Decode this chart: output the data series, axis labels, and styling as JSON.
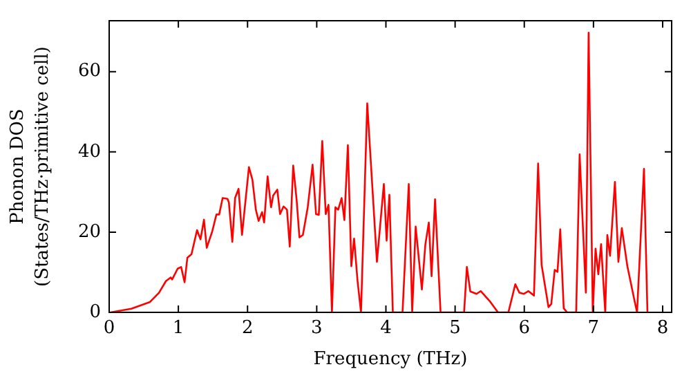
{
  "chart_data": {
    "type": "line",
    "xlabel": "Frequency (THz)",
    "ylabel": "Phonon DOS\n(States/THz·primitive cell)",
    "xlim": [
      0,
      8.13
    ],
    "ylim": [
      0,
      72.7
    ],
    "xticks": [
      0,
      1,
      2,
      3,
      4,
      5,
      6,
      7,
      8
    ],
    "yticks": [
      0,
      20,
      40,
      60
    ],
    "grid": false,
    "legend": false,
    "marker": "none",
    "line_style": "solid",
    "series": [
      {
        "color": "#ff0000",
        "x": [
          0.02,
          0.32,
          0.59,
          0.72,
          0.82,
          0.89,
          0.91,
          0.99,
          1.04,
          1.09,
          1.13,
          1.19,
          1.27,
          1.32,
          1.37,
          1.41,
          1.49,
          1.55,
          1.59,
          1.64,
          1.71,
          1.73,
          1.78,
          1.82,
          1.87,
          1.92,
          2.02,
          2.07,
          2.12,
          2.16,
          2.21,
          2.24,
          2.29,
          2.34,
          2.37,
          2.43,
          2.47,
          2.52,
          2.57,
          2.61,
          2.66,
          2.71,
          2.75,
          2.8,
          2.87,
          2.94,
          2.99,
          3.03,
          3.08,
          3.13,
          3.17,
          3.22,
          3.27,
          3.31,
          3.36,
          3.4,
          3.45,
          3.5,
          3.54,
          3.59,
          3.64,
          3.73,
          3.87,
          3.97,
          4.01,
          4.05,
          4.1,
          4.24,
          4.33,
          4.38,
          4.43,
          4.52,
          4.57,
          4.62,
          4.66,
          4.71,
          4.79,
          5.13,
          5.17,
          5.22,
          5.31,
          5.37,
          5.51,
          5.62,
          5.77,
          5.87,
          5.93,
          5.99,
          6.06,
          6.14,
          6.2,
          6.25,
          6.35,
          6.39,
          6.44,
          6.48,
          6.52,
          6.57,
          6.62,
          6.75,
          6.8,
          6.89,
          6.93,
          6.99,
          7.03,
          7.07,
          7.11,
          7.17,
          7.2,
          7.24,
          7.31,
          7.36,
          7.41,
          7.49,
          7.59,
          7.63,
          7.73,
          7.78
        ],
        "values": [
          0,
          0.9,
          2.6,
          4.9,
          7.8,
          8.7,
          8.2,
          10.9,
          11.3,
          7.5,
          13.6,
          14.5,
          20.5,
          18.2,
          23.1,
          16.1,
          20.2,
          24.4,
          24.4,
          28.5,
          28.3,
          27.4,
          17.6,
          28.5,
          30.8,
          19.3,
          36.2,
          33.1,
          25.6,
          22.8,
          25,
          22.4,
          33.9,
          26.2,
          29.1,
          30.6,
          24.5,
          26.4,
          25.6,
          16.4,
          36.6,
          27.9,
          18.7,
          19.3,
          26.2,
          36.8,
          24.5,
          24.3,
          42.7,
          24.5,
          26.8,
          0,
          26.2,
          25.6,
          28.5,
          23,
          41.7,
          11.5,
          18.4,
          7.8,
          0,
          52.1,
          12.6,
          32,
          17.9,
          29.3,
          0,
          0,
          32,
          0,
          21.4,
          5.7,
          16.9,
          22.4,
          9,
          28.2,
          0,
          0,
          11.3,
          5.2,
          4.6,
          5.3,
          2.6,
          0,
          0,
          7,
          4.9,
          4.6,
          5.3,
          4.2,
          37.1,
          11.9,
          1.3,
          2.1,
          10.6,
          10.1,
          20.7,
          1,
          0,
          0,
          39.4,
          4.9,
          69.7,
          0,
          15.9,
          9.5,
          17,
          0,
          19.3,
          14.1,
          32.5,
          12.6,
          21,
          11.5,
          3.2,
          0,
          35.8,
          0
        ]
      }
    ]
  }
}
